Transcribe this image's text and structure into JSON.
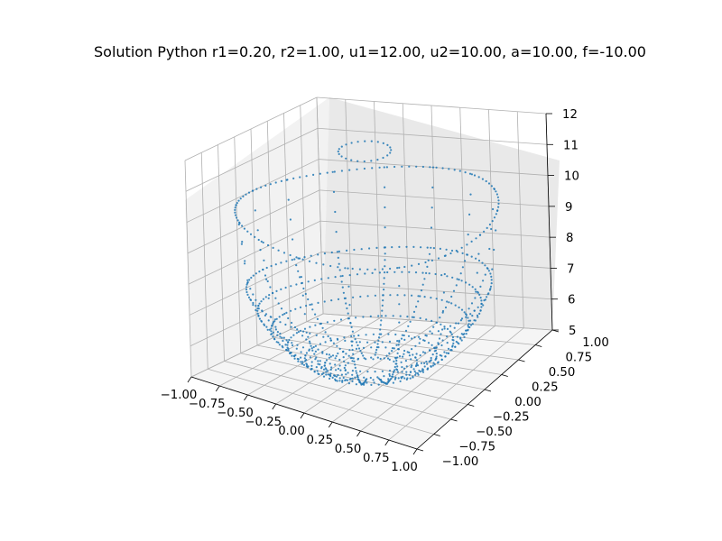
{
  "chart_data": {
    "type": "scatter",
    "projection": "3d",
    "title": "Solution Python  r1=0.20, r2=1.00, u1=12.00, u2=10.00, a=10.00, f=-10.00",
    "xlabel": "",
    "ylabel": "",
    "zlabel": "",
    "xlim": [
      -1.0,
      1.0
    ],
    "ylim": [
      -1.0,
      1.0
    ],
    "zlim": [
      5,
      12
    ],
    "x_ticks": [
      "−1.00",
      "−0.75",
      "−0.50",
      "−0.25",
      "0.00",
      "0.25",
      "0.50",
      "0.75",
      "1.00"
    ],
    "y_ticks": [
      "−1.00",
      "−0.75",
      "−0.50",
      "−0.25",
      "0.00",
      "0.25",
      "0.50",
      "0.75",
      "1.00"
    ],
    "z_ticks": [
      "5",
      "6",
      "7",
      "8",
      "9",
      "10",
      "11",
      "12"
    ],
    "grid": true,
    "marker_color": "#1f77b4",
    "surface": {
      "rings": [
        {
          "r": 0.2,
          "z": 12.0
        },
        {
          "r": 1.0,
          "z": 10.0
        },
        {
          "r": 0.93,
          "z": 7.5
        },
        {
          "r": 0.85,
          "z": 6.8
        },
        {
          "r": 0.75,
          "z": 6.2
        },
        {
          "r": 0.63,
          "z": 5.7
        },
        {
          "r": 0.5,
          "z": 5.3
        },
        {
          "r": 0.35,
          "z": 5.1
        },
        {
          "r": 0.2,
          "z": 5.0
        }
      ],
      "meridians": 16
    }
  }
}
